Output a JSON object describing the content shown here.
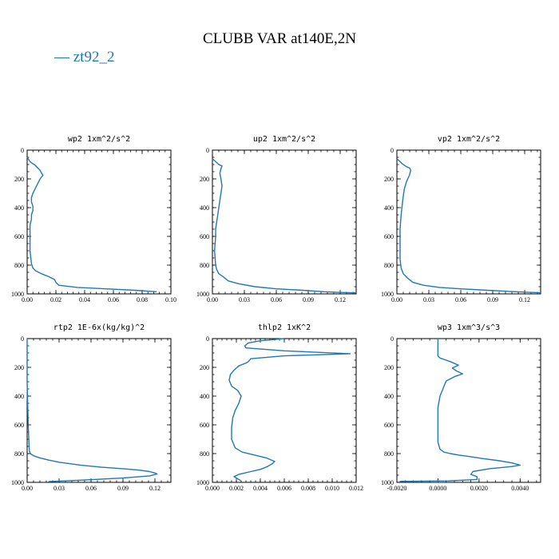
{
  "figure": {
    "title": "CLUBB VAR at140E,2N",
    "legend": [
      {
        "label": "— zt92_2",
        "color": "#1f77b4"
      }
    ]
  },
  "chart_data": [
    {
      "type": "line",
      "title": "wp2  1xm^2/s^2",
      "xlim": [
        0,
        0.1
      ],
      "ylim": [
        0,
        1000
      ],
      "y_inverted": true,
      "xticks": [
        "0.00",
        "0.02",
        "0.04",
        "0.06",
        "0.08",
        "0.10"
      ],
      "yticks": [
        "0",
        "200",
        "400",
        "600",
        "800",
        "1000"
      ],
      "series": [
        {
          "x": [
            0.0,
            0.002,
            0.004,
            0.005,
            0.006,
            0.007,
            0.009,
            0.01,
            0.011,
            0.009,
            0.007,
            0.005,
            0.004,
            0.003,
            0.003,
            0.004,
            0.004,
            0.003,
            0.003,
            0.002,
            0.002,
            0.002,
            0.002,
            0.003,
            0.004,
            0.006,
            0.01,
            0.015,
            0.019,
            0.02,
            0.022,
            0.035,
            0.055,
            0.075,
            0.09
          ],
          "y": [
            50,
            80,
            95,
            100,
            110,
            120,
            140,
            160,
            175,
            200,
            240,
            280,
            300,
            330,
            360,
            390,
            420,
            450,
            480,
            520,
            560,
            620,
            700,
            790,
            820,
            840,
            860,
            880,
            900,
            920,
            940,
            955,
            965,
            975,
            985
          ]
        }
      ]
    },
    {
      "type": "line",
      "title": "up2  1xm^2/s^2",
      "xlim": [
        0,
        0.135
      ],
      "ylim": [
        0,
        1000
      ],
      "y_inverted": true,
      "xticks": [
        "0.00",
        "0.03",
        "0.06",
        "0.09",
        "0.12"
      ],
      "yticks": [
        "0",
        "200",
        "400",
        "600",
        "800",
        "1000"
      ],
      "series": [
        {
          "x": [
            0.0,
            0.003,
            0.006,
            0.009,
            0.008,
            0.007,
            0.008,
            0.009,
            0.008,
            0.007,
            0.006,
            0.005,
            0.004,
            0.003,
            0.003,
            0.002,
            0.003,
            0.004,
            0.006,
            0.01,
            0.015,
            0.025,
            0.04,
            0.06,
            0.085,
            0.105,
            0.12,
            0.135
          ],
          "y": [
            60,
            80,
            100,
            110,
            130,
            160,
            200,
            250,
            300,
            350,
            400,
            450,
            500,
            550,
            600,
            700,
            800,
            830,
            860,
            880,
            910,
            930,
            950,
            965,
            975,
            985,
            990,
            993
          ]
        }
      ]
    },
    {
      "type": "line",
      "title": "vp2  1xm^2/s^2",
      "xlim": [
        0,
        0.135
      ],
      "ylim": [
        0,
        1000
      ],
      "y_inverted": true,
      "xticks": [
        "0.00",
        "0.03",
        "0.06",
        "0.09",
        "0.12"
      ],
      "yticks": [
        "0",
        "200",
        "400",
        "600",
        "800",
        "1000"
      ],
      "series": [
        {
          "x": [
            0.0,
            0.003,
            0.005,
            0.007,
            0.009,
            0.012,
            0.013,
            0.012,
            0.009,
            0.007,
            0.006,
            0.005,
            0.004,
            0.003,
            0.003,
            0.003,
            0.004,
            0.006,
            0.01,
            0.015,
            0.025,
            0.04,
            0.06,
            0.085,
            0.105,
            0.12,
            0.135
          ],
          "y": [
            60,
            80,
            95,
            105,
            115,
            125,
            140,
            170,
            220,
            270,
            320,
            380,
            450,
            550,
            650,
            760,
            820,
            860,
            890,
            920,
            940,
            955,
            965,
            975,
            983,
            988,
            992
          ]
        }
      ]
    },
    {
      "type": "line",
      "title": "rtp2  1E-6x(kg/kg)^2",
      "xlim": [
        0,
        0.135
      ],
      "ylim": [
        0,
        1000
      ],
      "y_inverted": true,
      "xticks": [
        "0.00",
        "0.03",
        "0.06",
        "0.09",
        "0.12"
      ],
      "yticks": [
        "0",
        "200",
        "400",
        "600",
        "800",
        "1000"
      ],
      "series": [
        {
          "x": [
            0.0,
            0.0,
            0.001,
            0.002,
            0.003,
            0.006,
            0.012,
            0.02,
            0.03,
            0.05,
            0.07,
            0.09,
            0.105,
            0.115,
            0.12,
            0.122,
            0.115,
            0.09,
            0.05,
            0.02
          ],
          "y": [
            0,
            300,
            600,
            780,
            800,
            815,
            830,
            845,
            860,
            880,
            895,
            905,
            915,
            925,
            935,
            942,
            955,
            970,
            985,
            995
          ]
        }
      ]
    },
    {
      "type": "line",
      "title": "thlp2  1xK^2",
      "xlim": [
        0,
        0.012
      ],
      "ylim": [
        0,
        1000
      ],
      "y_inverted": true,
      "xticks": [
        "0.000",
        "0.002",
        "0.004",
        "0.006",
        "0.008",
        "0.010",
        "0.012"
      ],
      "yticks": [
        "0",
        "200",
        "400",
        "600",
        "800",
        "1000"
      ],
      "series": [
        {
          "x": [
            0.006,
            0.004,
            0.003,
            0.0027,
            0.0028,
            0.006,
            0.0115,
            0.006,
            0.0032,
            0.003,
            0.0028,
            0.0022,
            0.0018,
            0.0015,
            0.0014,
            0.0016,
            0.0021,
            0.0024,
            0.0022,
            0.0019,
            0.0017,
            0.0016,
            0.0016,
            0.0019,
            0.0025,
            0.0035,
            0.0045,
            0.0052,
            0.005,
            0.0046,
            0.004,
            0.0032,
            0.0022,
            0.0018,
            0.0021,
            0.0024
          ],
          "y": [
            0,
            15,
            30,
            50,
            65,
            85,
            105,
            120,
            140,
            160,
            170,
            190,
            220,
            250,
            290,
            330,
            360,
            400,
            450,
            500,
            550,
            620,
            700,
            760,
            790,
            810,
            830,
            855,
            870,
            890,
            910,
            925,
            945,
            960,
            975,
            990
          ]
        }
      ]
    },
    {
      "type": "line",
      "title": "wp3  1xm^3/s^3",
      "xlim": [
        -0.002,
        0.005
      ],
      "ylim": [
        0,
        1000
      ],
      "y_inverted": true,
      "xticks": [
        "-0.0020",
        "0.0000",
        "0.0020",
        "0.0040"
      ],
      "yticks": [
        "0",
        "200",
        "400",
        "600",
        "800",
        "1000"
      ],
      "series": [
        {
          "x": [
            0.0,
            0.0,
            0.0001,
            0.0003,
            0.0006,
            0.001,
            0.0007,
            0.0009,
            0.0012,
            0.0008,
            0.0004,
            0.0003,
            0.0001,
            0.0,
            0.0,
            0.0,
            0.0,
            0.0001,
            0.0003,
            0.0006,
            0.001,
            0.0015,
            0.0022,
            0.003,
            0.0036,
            0.004,
            0.0036,
            0.0025,
            0.0017,
            0.0016,
            0.0019,
            0.0019,
            0.0005,
            -0.0018,
            -0.0019
          ],
          "y": [
            0,
            120,
            135,
            145,
            160,
            185,
            205,
            225,
            245,
            265,
            295,
            330,
            400,
            480,
            560,
            640,
            720,
            770,
            790,
            800,
            810,
            820,
            835,
            850,
            865,
            880,
            890,
            905,
            925,
            945,
            960,
            980,
            990,
            993,
            998
          ]
        }
      ]
    }
  ]
}
